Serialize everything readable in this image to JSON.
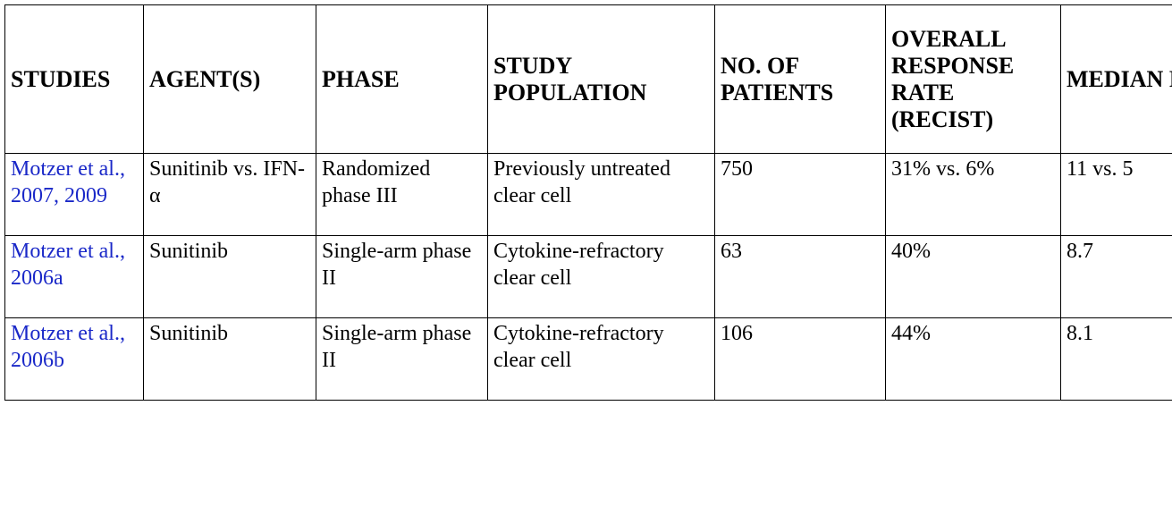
{
  "table": {
    "headers": [
      "STUDIES",
      "AGENT(S)",
      "PHASE",
      "STUDY POPULATION",
      "NO. OF PATIENTS",
      "OVERALL RESPONSE RATE (RECIST)",
      "MEDIAN PFS (MONTHS)"
    ],
    "rows": [
      {
        "study": "Motzer et al., 2007, 2009",
        "agents": "Sunitinib vs. IFN-α",
        "phase": "Randomized phase III",
        "population": "Previously untreated clear cell",
        "patients": "750",
        "orr": "31% vs. 6%",
        "pfs": "11 vs. 5"
      },
      {
        "study": "Motzer et al., 2006a",
        "agents": "Sunitinib",
        "phase": "Single-arm phase II",
        "population": "Cytokine-refractory clear cell",
        "patients": "63",
        "orr": "40%",
        "pfs": "8.7"
      },
      {
        "study": "Motzer et al., 2006b",
        "agents": "Sunitinib",
        "phase": "Single-arm phase II",
        "population": "Cytokine-refractory clear cell",
        "patients": "106",
        "orr": "44%",
        "pfs": "8.1"
      }
    ]
  }
}
